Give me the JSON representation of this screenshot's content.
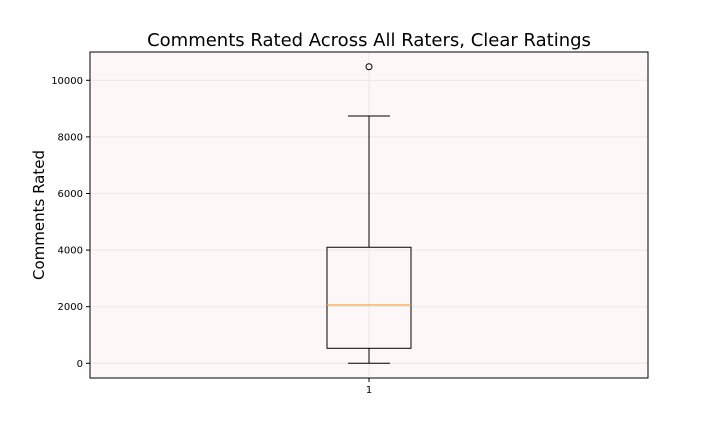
{
  "chart_data": {
    "type": "box",
    "title": "Comments Rated Across All Raters, Clear Ratings",
    "xlabel": "",
    "ylabel": "Comments Rated",
    "categories": [
      "1"
    ],
    "boxes": [
      {
        "category": "1",
        "whisker_low": 0,
        "q1": 530,
        "median": 2060,
        "q3": 4100,
        "whisker_high": 8740,
        "outliers": [
          10480
        ]
      }
    ],
    "ylim": [
      -520,
      11000
    ],
    "yticks": [
      0,
      2000,
      4000,
      6000,
      8000,
      10000
    ],
    "grid": true,
    "colors": {
      "plot_background": "#fdf8f7",
      "box_edge": "#000000",
      "median_line": "#f5a34a",
      "grid": "#ece7e5"
    }
  }
}
